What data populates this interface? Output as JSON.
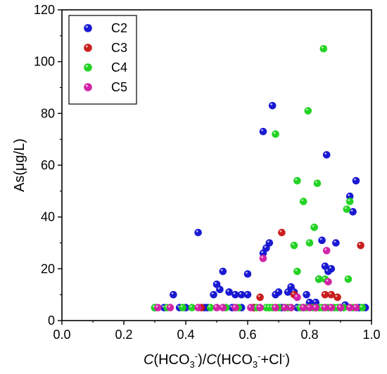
{
  "chart_data": {
    "type": "scatter",
    "xlabel": "C(HCO3-)/C(HCO3-+Cl-)",
    "ylabel": "As(μg/L)",
    "xlim": [
      0.0,
      1.0
    ],
    "ylim": [
      0,
      120
    ],
    "x_ticks": [
      "0.0",
      "0.2",
      "0.4",
      "0.6",
      "0.8",
      "1.0"
    ],
    "y_ticks": [
      "0",
      "20",
      "40",
      "60",
      "80",
      "100",
      "120"
    ],
    "grid": false,
    "legend_position": "top-left",
    "series": [
      {
        "name": "C2",
        "color": "#1414d2",
        "points": [
          [
            0.36,
            10
          ],
          [
            0.44,
            34
          ],
          [
            0.47,
            5
          ],
          [
            0.49,
            10
          ],
          [
            0.5,
            14
          ],
          [
            0.51,
            12
          ],
          [
            0.52,
            19
          ],
          [
            0.54,
            11
          ],
          [
            0.56,
            10
          ],
          [
            0.58,
            10
          ],
          [
            0.6,
            10
          ],
          [
            0.6,
            18
          ],
          [
            0.62,
            5
          ],
          [
            0.65,
            73
          ],
          [
            0.65,
            26
          ],
          [
            0.66,
            28
          ],
          [
            0.67,
            30
          ],
          [
            0.68,
            83
          ],
          [
            0.69,
            10
          ],
          [
            0.7,
            11
          ],
          [
            0.73,
            11
          ],
          [
            0.74,
            13
          ],
          [
            0.75,
            11
          ],
          [
            0.78,
            5
          ],
          [
            0.79,
            10
          ],
          [
            0.8,
            7
          ],
          [
            0.82,
            7
          ],
          [
            0.83,
            16
          ],
          [
            0.84,
            31
          ],
          [
            0.85,
            21
          ],
          [
            0.855,
            64
          ],
          [
            0.86,
            19
          ],
          [
            0.87,
            20
          ],
          [
            0.885,
            30
          ],
          [
            0.915,
            6
          ],
          [
            0.93,
            48
          ],
          [
            0.94,
            42
          ],
          [
            0.95,
            54
          ],
          [
            0.98,
            5
          ],
          [
            0.3,
            5
          ],
          [
            0.33,
            5
          ],
          [
            0.38,
            5
          ],
          [
            0.4,
            5
          ],
          [
            0.46,
            5
          ],
          [
            0.55,
            5
          ],
          [
            0.58,
            5
          ],
          [
            0.71,
            5
          ],
          [
            0.76,
            5
          ],
          [
            0.9,
            5
          ],
          [
            0.96,
            5
          ]
        ]
      },
      {
        "name": "C3",
        "color": "#c81818",
        "points": [
          [
            0.45,
            5
          ],
          [
            0.64,
            9
          ],
          [
            0.71,
            34
          ],
          [
            0.75,
            10
          ],
          [
            0.85,
            10
          ],
          [
            0.87,
            10
          ],
          [
            0.89,
            9
          ],
          [
            0.965,
            29
          ],
          [
            0.62,
            5
          ],
          [
            0.69,
            5
          ],
          [
            0.82,
            5
          ]
        ]
      },
      {
        "name": "C4",
        "color": "#1ed21e",
        "points": [
          [
            0.69,
            72
          ],
          [
            0.75,
            29
          ],
          [
            0.76,
            19
          ],
          [
            0.76,
            54
          ],
          [
            0.78,
            46
          ],
          [
            0.795,
            81
          ],
          [
            0.8,
            30
          ],
          [
            0.815,
            36
          ],
          [
            0.825,
            53
          ],
          [
            0.83,
            16
          ],
          [
            0.845,
            105
          ],
          [
            0.85,
            16
          ],
          [
            0.92,
            43
          ],
          [
            0.925,
            16
          ],
          [
            0.93,
            46
          ],
          [
            0.3,
            5
          ],
          [
            0.34,
            5
          ],
          [
            0.39,
            5
          ],
          [
            0.42,
            5
          ],
          [
            0.48,
            5
          ],
          [
            0.53,
            5
          ],
          [
            0.57,
            5
          ],
          [
            0.63,
            5
          ],
          [
            0.66,
            5
          ],
          [
            0.67,
            5
          ],
          [
            0.68,
            5
          ],
          [
            0.7,
            5
          ],
          [
            0.72,
            5
          ],
          [
            0.73,
            5
          ],
          [
            0.74,
            5
          ],
          [
            0.77,
            5
          ],
          [
            0.79,
            5
          ],
          [
            0.81,
            5
          ],
          [
            0.83,
            5
          ],
          [
            0.84,
            5
          ],
          [
            0.86,
            5
          ],
          [
            0.88,
            5
          ],
          [
            0.89,
            5
          ],
          [
            0.91,
            5
          ],
          [
            0.94,
            5
          ],
          [
            0.97,
            5
          ]
        ]
      },
      {
        "name": "C5",
        "color": "#d21ea5",
        "points": [
          [
            0.65,
            24
          ],
          [
            0.76,
            9
          ],
          [
            0.855,
            27
          ],
          [
            0.86,
            15
          ],
          [
            0.31,
            5
          ],
          [
            0.35,
            5
          ],
          [
            0.44,
            5
          ],
          [
            0.5,
            5
          ],
          [
            0.52,
            5
          ],
          [
            0.56,
            5
          ],
          [
            0.61,
            5
          ],
          [
            0.64,
            5
          ],
          [
            0.69,
            5
          ],
          [
            0.72,
            5
          ],
          [
            0.74,
            5
          ],
          [
            0.78,
            5
          ],
          [
            0.8,
            5
          ],
          [
            0.82,
            5
          ],
          [
            0.85,
            5
          ],
          [
            0.87,
            5
          ],
          [
            0.9,
            5
          ],
          [
            0.93,
            5
          ],
          [
            0.95,
            5
          ]
        ]
      }
    ]
  }
}
